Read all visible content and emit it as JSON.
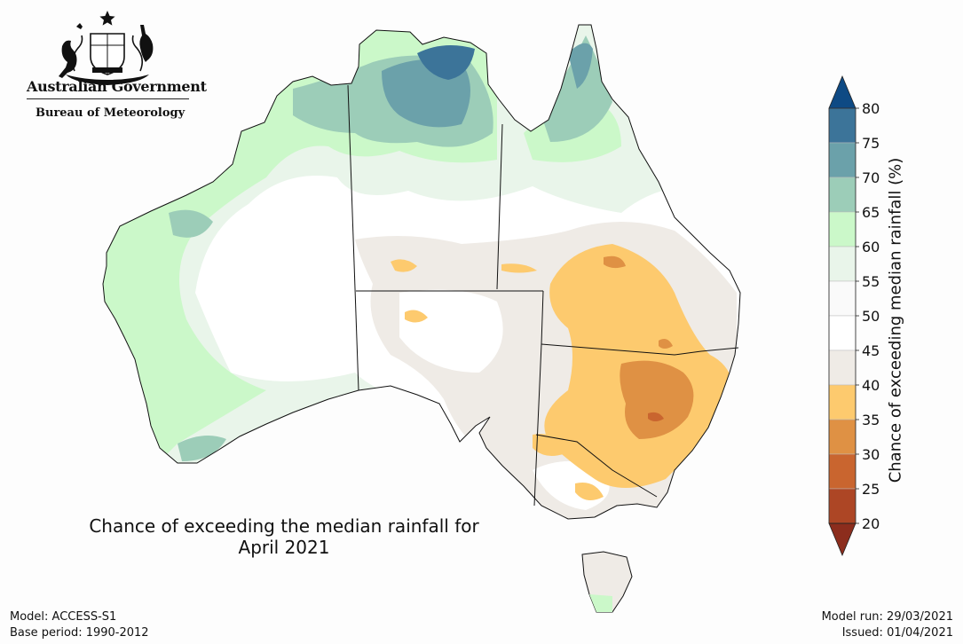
{
  "logo": {
    "line1": "Australian Government",
    "line2": "Bureau of Meteorology"
  },
  "map_title": {
    "line1": "Chance of exceeding the median rainfall for",
    "line2": "April 2021"
  },
  "footer": {
    "model": "Model: ACCESS-S1",
    "base_period": "Base period: 1990-2012",
    "model_run": "Model run: 29/03/2021",
    "issued": "Issued: 01/04/2021"
  },
  "colorbar": {
    "label": "Chance of exceeding median rainfall (%)",
    "bins": [
      {
        "from": 80,
        "to": 100,
        "color": "#0e4a84"
      },
      {
        "from": 75,
        "to": 80,
        "color": "#3c7499"
      },
      {
        "from": 70,
        "to": 75,
        "color": "#6ba1aa"
      },
      {
        "from": 65,
        "to": 70,
        "color": "#9ccdb8"
      },
      {
        "from": 60,
        "to": 65,
        "color": "#cbf8c9"
      },
      {
        "from": 55,
        "to": 60,
        "color": "#e9f5ea"
      },
      {
        "from": 50,
        "to": 55,
        "color": "#fafafa"
      },
      {
        "from": 45,
        "to": 50,
        "color": "#ffffff"
      },
      {
        "from": 40,
        "to": 45,
        "color": "#efebe6"
      },
      {
        "from": 35,
        "to": 40,
        "color": "#fdca6e"
      },
      {
        "from": 30,
        "to": 35,
        "color": "#df9144"
      },
      {
        "from": 25,
        "to": 30,
        "color": "#c9652f"
      },
      {
        "from": 20,
        "to": 25,
        "color": "#ad4625"
      },
      {
        "from": 0,
        "to": 20,
        "color": "#8c2d1d"
      }
    ],
    "tick_labels": [
      "80",
      "75",
      "70",
      "65",
      "60",
      "55",
      "50",
      "45",
      "40",
      "35",
      "30",
      "25",
      "20"
    ]
  }
}
